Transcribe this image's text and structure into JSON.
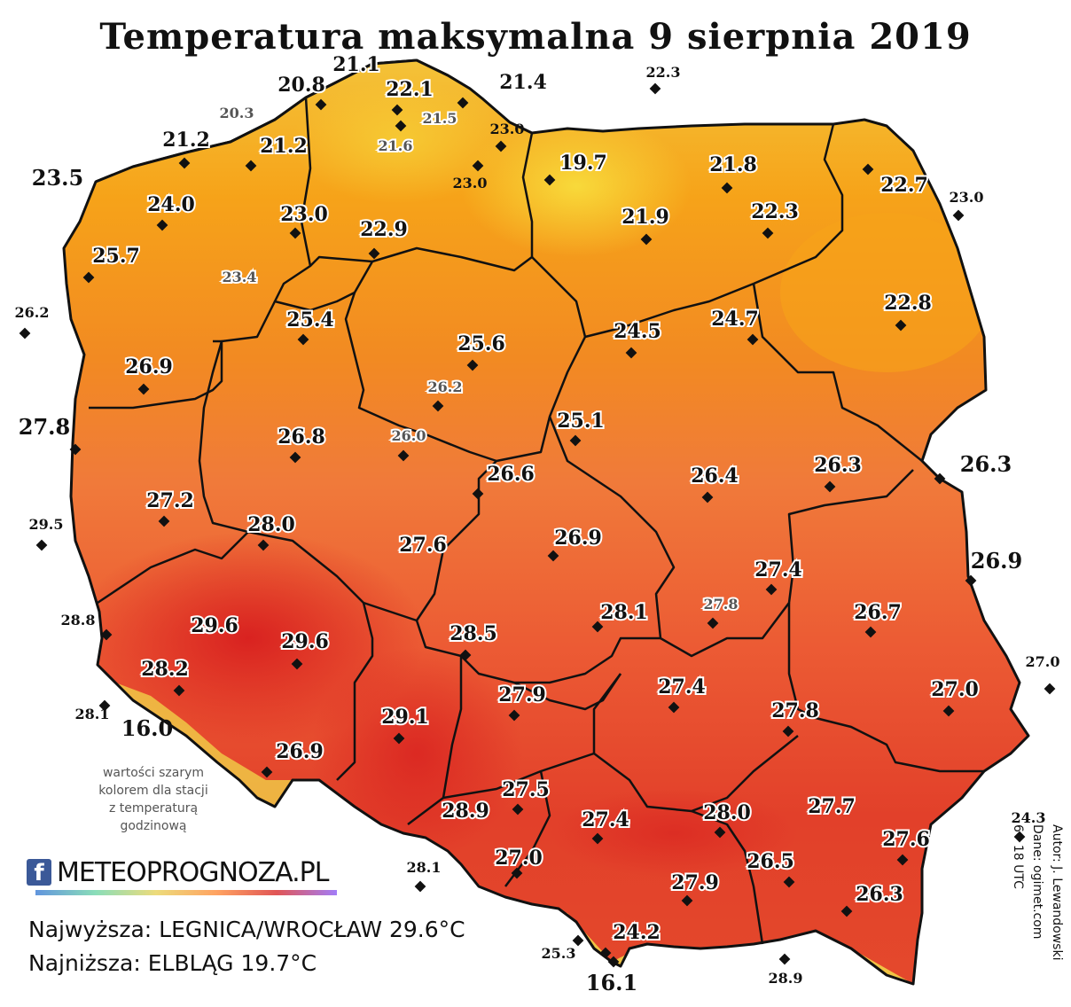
{
  "title": "Temperatura maksymalna 9 sierpnia 2019",
  "note_lines": [
    "wartości szarym",
    "kolorem dla stacji",
    "z temperaturą",
    "godzinową"
  ],
  "brand": {
    "fb": "f",
    "name": "METEOPROGNOZA.PL"
  },
  "stats": {
    "max": "Najwyższa: LEGNICA/WROCŁAW 29.6°C",
    "min": "Najniższa: ELBLĄG 19.7°C"
  },
  "author": {
    "line1": "Autor: J. Lewandowski",
    "line2": "Dane: ogimet.com",
    "line3": "6 - 18 UTC"
  },
  "colors": {
    "sea_coast": "#f4c43a",
    "north": "#f6a319",
    "center": "#f07e2c",
    "south": "#e8482b",
    "hot": "#d81f1f",
    "mountain": "#f2e24b",
    "border": "#111111"
  },
  "stations": [
    {
      "v": "21.1"
    },
    {
      "v": "20.8"
    },
    {
      "v": "22.1"
    },
    {
      "v": "21.4"
    },
    {
      "v": "22.3"
    },
    {
      "v": "20.3"
    },
    {
      "v": "21.5"
    },
    {
      "v": "23.0"
    },
    {
      "v": "21.2"
    },
    {
      "v": "21.2"
    },
    {
      "v": "21.6"
    },
    {
      "v": "19.7"
    },
    {
      "v": "21.8"
    },
    {
      "v": "23.0"
    },
    {
      "v": "23.5"
    },
    {
      "v": "22.7"
    },
    {
      "v": "23.0"
    },
    {
      "v": "24.0"
    },
    {
      "v": "23.0"
    },
    {
      "v": "21.9"
    },
    {
      "v": "22.3"
    },
    {
      "v": "22.9"
    },
    {
      "v": "25.7"
    },
    {
      "v": "23.4"
    },
    {
      "v": "22.8"
    },
    {
      "v": "26.2"
    },
    {
      "v": "25.4"
    },
    {
      "v": "24.5"
    },
    {
      "v": "24.7"
    },
    {
      "v": "25.6"
    },
    {
      "v": "26.9"
    },
    {
      "v": "26.2"
    },
    {
      "v": "27.8"
    },
    {
      "v": "25.1"
    },
    {
      "v": "26.8"
    },
    {
      "v": "26.0"
    },
    {
      "v": "26.6"
    },
    {
      "v": "26.4"
    },
    {
      "v": "26.3"
    },
    {
      "v": "26.3"
    },
    {
      "v": "27.2"
    },
    {
      "v": "29.5"
    },
    {
      "v": "28.0"
    },
    {
      "v": "27.6"
    },
    {
      "v": "26.9"
    },
    {
      "v": "26.9"
    },
    {
      "v": "27.4"
    },
    {
      "v": "28.8"
    },
    {
      "v": "29.6"
    },
    {
      "v": "28.1"
    },
    {
      "v": "27.8"
    },
    {
      "v": "26.7"
    },
    {
      "v": "29.6"
    },
    {
      "v": "28.5"
    },
    {
      "v": "28.2"
    },
    {
      "v": "27.0"
    },
    {
      "v": "27.9"
    },
    {
      "v": "27.4"
    },
    {
      "v": "27.0"
    },
    {
      "v": "28.1"
    },
    {
      "v": "16.0"
    },
    {
      "v": "29.1"
    },
    {
      "v": "27.8"
    },
    {
      "v": "26.9"
    },
    {
      "v": "27.5"
    },
    {
      "v": "28.9"
    },
    {
      "v": "27.4"
    },
    {
      "v": "28.0"
    },
    {
      "v": "27.7"
    },
    {
      "v": "24.3"
    },
    {
      "v": "27.6"
    },
    {
      "v": "27.0"
    },
    {
      "v": "26.5"
    },
    {
      "v": "28.1"
    },
    {
      "v": "27.9"
    },
    {
      "v": "26.3"
    },
    {
      "v": "24.2"
    },
    {
      "v": "25.3"
    },
    {
      "v": "28.9"
    },
    {
      "v": "16.1"
    }
  ]
}
